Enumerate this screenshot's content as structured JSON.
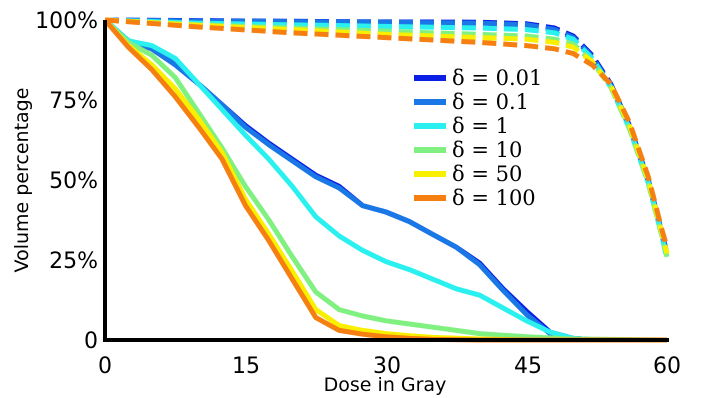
{
  "chart_data": {
    "type": "line",
    "xlabel": "Dose in Gray",
    "ylabel": "Volume percentage",
    "xlim": [
      0,
      60
    ],
    "ylim": [
      0,
      100
    ],
    "x_ticks": [
      0,
      15,
      30,
      45,
      60
    ],
    "x_tick_labels": [
      "0",
      "15",
      "30",
      "45",
      "60"
    ],
    "y_ticks": [
      0,
      25,
      50,
      75,
      100
    ],
    "y_tick_labels": [
      "0",
      "25%",
      "50%",
      "75%",
      "100%"
    ],
    "grid": false,
    "legend_position": "upper-right",
    "series": [
      {
        "name": "δ = 0.01",
        "color": "#0a1ee6",
        "solid": [
          [
            0,
            100
          ],
          [
            2.5,
            93.5
          ],
          [
            5,
            91
          ],
          [
            7.5,
            86
          ],
          [
            10,
            80
          ],
          [
            12.5,
            73.5
          ],
          [
            15,
            67
          ],
          [
            17.5,
            61.5
          ],
          [
            20,
            56.5
          ],
          [
            22.5,
            51.5
          ],
          [
            25,
            48
          ],
          [
            27.5,
            42
          ],
          [
            30,
            40
          ],
          [
            32.5,
            37
          ],
          [
            35,
            33
          ],
          [
            37.5,
            29
          ],
          [
            40,
            24
          ],
          [
            42.5,
            16
          ],
          [
            45,
            9
          ],
          [
            47.5,
            2.5
          ],
          [
            50,
            0.5
          ],
          [
            52.5,
            0
          ],
          [
            60,
            0
          ]
        ],
        "dashed": [
          [
            0,
            100
          ],
          [
            10,
            99.8
          ],
          [
            20,
            99.6
          ],
          [
            30,
            99.4
          ],
          [
            40,
            99.3
          ],
          [
            45,
            98.8
          ],
          [
            48,
            97.5
          ],
          [
            50,
            95
          ],
          [
            52,
            89
          ],
          [
            54,
            80
          ],
          [
            56,
            67
          ],
          [
            58,
            50
          ],
          [
            59.5,
            33
          ],
          [
            60,
            27
          ]
        ]
      },
      {
        "name": "δ = 0.1",
        "color": "#1a78e6",
        "solid": [
          [
            0,
            100
          ],
          [
            2.5,
            93.5
          ],
          [
            5,
            91
          ],
          [
            7.5,
            86
          ],
          [
            10,
            80
          ],
          [
            12.5,
            73.5
          ],
          [
            15,
            66.5
          ],
          [
            17.5,
            61
          ],
          [
            20,
            56
          ],
          [
            22.5,
            51
          ],
          [
            25,
            47.5
          ],
          [
            27.5,
            42
          ],
          [
            30,
            40
          ],
          [
            32.5,
            37
          ],
          [
            35,
            33
          ],
          [
            37.5,
            29
          ],
          [
            40,
            23.5
          ],
          [
            42.5,
            15.5
          ],
          [
            45,
            8
          ],
          [
            47.5,
            2
          ],
          [
            50,
            0.5
          ],
          [
            52.5,
            0
          ],
          [
            60,
            0
          ]
        ],
        "dashed": [
          [
            0,
            100
          ],
          [
            10,
            99.7
          ],
          [
            20,
            99.5
          ],
          [
            30,
            99.3
          ],
          [
            40,
            99
          ],
          [
            45,
            98.5
          ],
          [
            48,
            97
          ],
          [
            50,
            94.5
          ],
          [
            52,
            88.5
          ],
          [
            54,
            79.5
          ],
          [
            56,
            66.5
          ],
          [
            58,
            49.5
          ],
          [
            59.5,
            32.5
          ],
          [
            60,
            26
          ]
        ]
      },
      {
        "name": "δ = 1",
        "color": "#2af0f0",
        "solid": [
          [
            0,
            100
          ],
          [
            2.5,
            93.5
          ],
          [
            5,
            92
          ],
          [
            7.5,
            88
          ],
          [
            10,
            80
          ],
          [
            12.5,
            72
          ],
          [
            15,
            64
          ],
          [
            17.5,
            56.5
          ],
          [
            20,
            48
          ],
          [
            22.5,
            38.5
          ],
          [
            25,
            32.5
          ],
          [
            27.5,
            28
          ],
          [
            30,
            24.5
          ],
          [
            32.5,
            22
          ],
          [
            35,
            19
          ],
          [
            37.5,
            16
          ],
          [
            40,
            14
          ],
          [
            42.5,
            10
          ],
          [
            45,
            6
          ],
          [
            47.5,
            2.5
          ],
          [
            50,
            0.5
          ],
          [
            52.5,
            0
          ],
          [
            60,
            0
          ]
        ],
        "dashed": [
          [
            0,
            100
          ],
          [
            10,
            99
          ],
          [
            20,
            98.5
          ],
          [
            30,
            98
          ],
          [
            40,
            97.5
          ],
          [
            45,
            97
          ],
          [
            48,
            96
          ],
          [
            50,
            94
          ],
          [
            52,
            88
          ],
          [
            54,
            79
          ],
          [
            56,
            66
          ],
          [
            58,
            49
          ],
          [
            59.5,
            32
          ],
          [
            60,
            25
          ]
        ]
      },
      {
        "name": "δ = 10",
        "color": "#80f080",
        "solid": [
          [
            0,
            100
          ],
          [
            2.5,
            93
          ],
          [
            5,
            89
          ],
          [
            7.5,
            82
          ],
          [
            10,
            71
          ],
          [
            12.5,
            60
          ],
          [
            15,
            48
          ],
          [
            17.5,
            37.5
          ],
          [
            20,
            26
          ],
          [
            22.5,
            15
          ],
          [
            25,
            9.5
          ],
          [
            27.5,
            7.5
          ],
          [
            30,
            6
          ],
          [
            32.5,
            5
          ],
          [
            35,
            4
          ],
          [
            37.5,
            3
          ],
          [
            40,
            2
          ],
          [
            42.5,
            1.5
          ],
          [
            45,
            1
          ],
          [
            50,
            0.3
          ],
          [
            60,
            0
          ]
        ],
        "dashed": [
          [
            0,
            100
          ],
          [
            10,
            98.5
          ],
          [
            20,
            97.5
          ],
          [
            30,
            96.5
          ],
          [
            40,
            95.5
          ],
          [
            45,
            95
          ],
          [
            48,
            94
          ],
          [
            50,
            92.5
          ],
          [
            52,
            87
          ],
          [
            54,
            79
          ],
          [
            56,
            66
          ],
          [
            58,
            49
          ],
          [
            59.5,
            32
          ],
          [
            60,
            26
          ]
        ]
      },
      {
        "name": "δ = 50",
        "color": "#f8f000",
        "solid": [
          [
            0,
            100
          ],
          [
            2.5,
            92
          ],
          [
            5,
            86
          ],
          [
            7.5,
            78.5
          ],
          [
            10,
            69
          ],
          [
            12.5,
            58.5
          ],
          [
            15,
            44
          ],
          [
            17.5,
            33
          ],
          [
            20,
            21.5
          ],
          [
            22.5,
            9.5
          ],
          [
            25,
            4.5
          ],
          [
            27.5,
            3
          ],
          [
            30,
            2
          ],
          [
            32.5,
            1.3
          ],
          [
            35,
            0.8
          ],
          [
            40,
            0.3
          ],
          [
            45,
            0
          ],
          [
            60,
            0
          ]
        ],
        "dashed": [
          [
            0,
            100
          ],
          [
            10,
            98.3
          ],
          [
            20,
            97
          ],
          [
            30,
            95.5
          ],
          [
            40,
            94.5
          ],
          [
            45,
            94
          ],
          [
            48,
            93
          ],
          [
            50,
            91.5
          ],
          [
            52,
            87
          ],
          [
            54,
            79.5
          ],
          [
            56,
            67
          ],
          [
            58,
            50
          ],
          [
            59.5,
            33
          ],
          [
            60,
            27
          ]
        ]
      },
      {
        "name": "δ = 100",
        "color": "#f57f10",
        "solid": [
          [
            0,
            100
          ],
          [
            2.5,
            91.5
          ],
          [
            5,
            84.5
          ],
          [
            7.5,
            76
          ],
          [
            10,
            66.5
          ],
          [
            12.5,
            56.5
          ],
          [
            15,
            42
          ],
          [
            17.5,
            31
          ],
          [
            20,
            19
          ],
          [
            22.5,
            7
          ],
          [
            25,
            3
          ],
          [
            27.5,
            1.8
          ],
          [
            30,
            1
          ],
          [
            32.5,
            0.5
          ],
          [
            35,
            0.2
          ],
          [
            40,
            0
          ],
          [
            60,
            0
          ]
        ],
        "dashed": [
          [
            0,
            100
          ],
          [
            10,
            97.8
          ],
          [
            20,
            96
          ],
          [
            30,
            94.5
          ],
          [
            40,
            93
          ],
          [
            45,
            92
          ],
          [
            48,
            91
          ],
          [
            50,
            89.5
          ],
          [
            52,
            86
          ],
          [
            54,
            80
          ],
          [
            56,
            68
          ],
          [
            58,
            51
          ],
          [
            59.5,
            34
          ],
          [
            60,
            29
          ]
        ]
      }
    ]
  }
}
